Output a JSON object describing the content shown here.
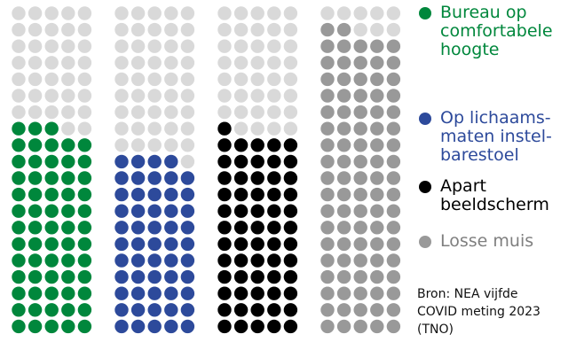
{
  "chart_data": {
    "type": "waffle",
    "grid": {
      "columns": 5,
      "rows": 20,
      "total_dots": 100
    },
    "unit": "%",
    "empty_color": "#d9d9d9",
    "series": [
      {
        "name": "Bureau op\ncomfortabele\nhoogte",
        "value": 63,
        "color": "#00873c",
        "text_color": "#00873c"
      },
      {
        "name": "Op lichaams-\nmaten instel-\nbarestoel",
        "value": 54,
        "color": "#2d4a9b",
        "text_color": "#2d4a9b"
      },
      {
        "name": "Apart\nbeeldscherm",
        "value": 61,
        "color": "#000000",
        "text_color": "#000000"
      },
      {
        "name": "Losse muis",
        "value": 92,
        "color": "#999999",
        "text_color": "#7f7f7f"
      }
    ],
    "source": "Bron: NEA vijfde\nCOVID meting 2023\n(TNO)"
  }
}
